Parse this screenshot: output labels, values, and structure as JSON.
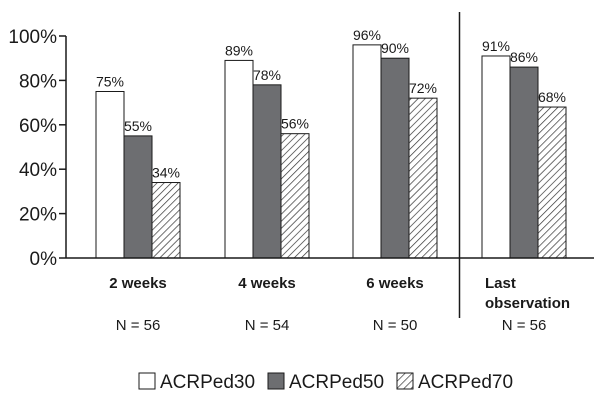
{
  "chart_data": {
    "type": "bar",
    "categories": [
      "2 weeks",
      "4 weeks",
      "6 weeks",
      "Last observation"
    ],
    "category_label_lines": [
      [
        "2 weeks"
      ],
      [
        "4 weeks"
      ],
      [
        "6 weeks"
      ],
      [
        "Last",
        "observation"
      ]
    ],
    "n_labels": [
      "N = 56",
      "N = 54",
      "N = 50",
      "N = 56"
    ],
    "series": [
      {
        "name": "ACRPed30",
        "values": [
          75,
          89,
          96,
          91
        ],
        "labels": [
          "75%",
          "89%",
          "96%",
          "91%"
        ],
        "fill": "#ffffff"
      },
      {
        "name": "ACRPed50",
        "values": [
          55,
          78,
          90,
          86
        ],
        "labels": [
          "55%",
          "78%",
          "90%",
          "86%"
        ],
        "fill": "#6d6e71"
      },
      {
        "name": "ACRPed70",
        "values": [
          34,
          56,
          72,
          68
        ],
        "labels": [
          "34%",
          "56%",
          "72%",
          "68%"
        ],
        "fill": "hatch"
      }
    ],
    "y_ticks": [
      "0%",
      "20%",
      "40%",
      "60%",
      "80%",
      "100%"
    ],
    "ylim": [
      0,
      100
    ],
    "title": "",
    "xlabel": "",
    "ylabel": "",
    "grid": false,
    "legend_position": "bottom",
    "separator_before_category": "Last observation"
  }
}
